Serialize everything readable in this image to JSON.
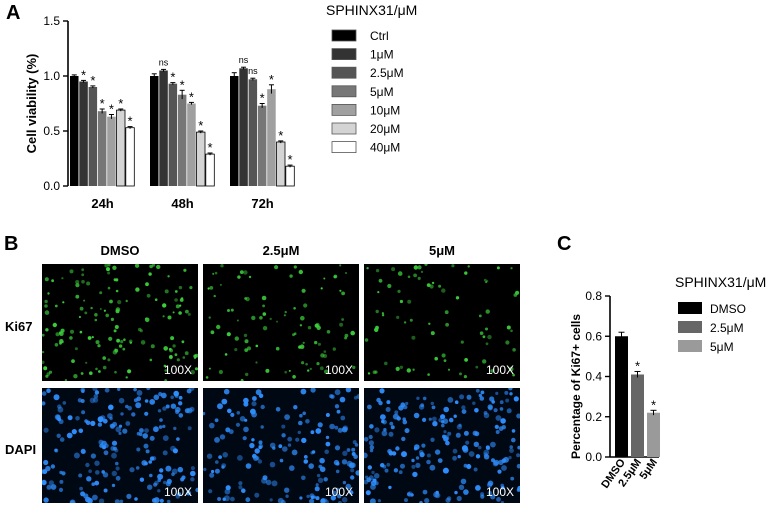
{
  "panel_labels": {
    "a": "A",
    "b": "B",
    "c": "C"
  },
  "chart_data": [
    {
      "type": "bar",
      "panel": "A",
      "ylabel": "Cell viability (%)",
      "ylim": [
        0,
        1.5
      ],
      "yticks": [
        0.0,
        0.5,
        1.0,
        1.5
      ],
      "ytick_labels": [
        "0.0",
        "0.5",
        "1.0",
        "1.5"
      ],
      "categories": [
        "24h",
        "48h",
        "72h"
      ],
      "legend_title": "SPHINX31/μM",
      "legend_position": "right",
      "series": [
        {
          "name": "Ctrl",
          "color": "#000000",
          "values": [
            1.0,
            1.0,
            1.0
          ],
          "errors": [
            0.01,
            0.02,
            0.03
          ],
          "sig": [
            "",
            "",
            ""
          ]
        },
        {
          "name": "1μM",
          "color": "#333333",
          "values": [
            0.95,
            1.05,
            1.07
          ],
          "errors": [
            0.01,
            0.01,
            0.01
          ],
          "sig": [
            "*",
            "ns",
            "ns"
          ]
        },
        {
          "name": "2.5μM",
          "color": "#555555",
          "values": [
            0.9,
            0.93,
            0.97
          ],
          "errors": [
            0.01,
            0.01,
            0.01
          ],
          "sig": [
            "*",
            "*",
            "ns"
          ]
        },
        {
          "name": "5μM",
          "color": "#777777",
          "values": [
            0.68,
            0.83,
            0.73
          ],
          "errors": [
            0.02,
            0.04,
            0.02
          ],
          "sig": [
            "*",
            "*",
            "*"
          ]
        },
        {
          "name": "10μM",
          "color": "#a0a0a0",
          "values": [
            0.63,
            0.75,
            0.88
          ],
          "errors": [
            0.02,
            0.01,
            0.04
          ],
          "sig": [
            "*",
            "*",
            "*"
          ]
        },
        {
          "name": "20μM",
          "color": "#d4d4d4",
          "values": [
            0.69,
            0.49,
            0.4
          ],
          "errors": [
            0.01,
            0.01,
            0.01
          ],
          "sig": [
            "*",
            "*",
            "*"
          ]
        },
        {
          "name": "40μM",
          "color": "#ffffff",
          "values": [
            0.53,
            0.29,
            0.18
          ],
          "errors": [
            0.01,
            0.01,
            0.01
          ],
          "sig": [
            "*",
            "*",
            "*"
          ]
        }
      ]
    },
    {
      "type": "bar",
      "panel": "C",
      "ylabel": "Percentage of Ki67+ cells",
      "ylim": [
        0,
        0.8
      ],
      "yticks": [
        0.0,
        0.2,
        0.4,
        0.6,
        0.8
      ],
      "ytick_labels": [
        "0.0",
        "0.2",
        "0.4",
        "0.6",
        "0.8"
      ],
      "categories": [
        "DMSO",
        "2.5μM",
        "5μM"
      ],
      "values": [
        0.6,
        0.41,
        0.22
      ],
      "errors": [
        0.02,
        0.015,
        0.012
      ],
      "colors": [
        "#000000",
        "#666666",
        "#9a9a9a"
      ],
      "sig": [
        "",
        "*",
        "*"
      ],
      "legend_title": "SPHINX31/μM",
      "legend_position": "right",
      "legend_entries": [
        "DMSO",
        "2.5μM",
        "5μM"
      ]
    }
  ],
  "micrographs": {
    "columns": [
      "DMSO",
      "2.5μM",
      "5μM"
    ],
    "rows": [
      "Ki67",
      "DAPI"
    ],
    "magnification": "100X",
    "stain_colors": {
      "Ki67": "#3cd13c",
      "DAPI": "#2f8fff"
    }
  }
}
